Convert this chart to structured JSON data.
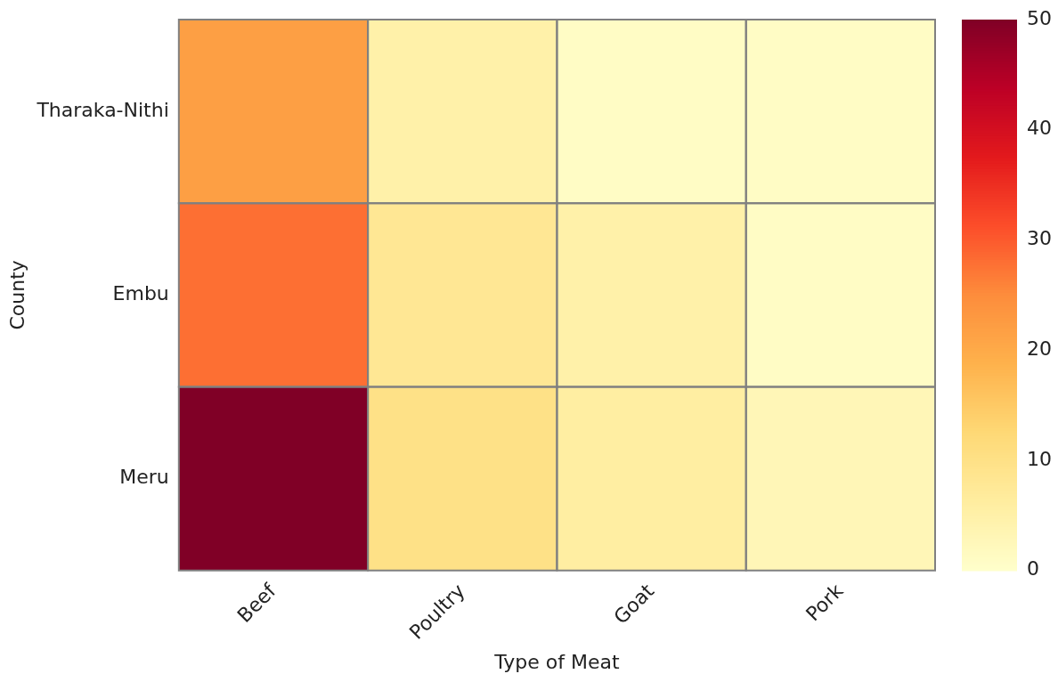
{
  "chart_data": {
    "type": "heatmap",
    "xlabel": "Type of Meat",
    "ylabel": "County",
    "categories": [
      "Beef",
      "Poultry",
      "Goat",
      "Pork"
    ],
    "y_categories": [
      "Tharaka-Nithi",
      "Embu",
      "Meru"
    ],
    "cells": [
      [
        22,
        5,
        1,
        1
      ],
      [
        28,
        8,
        5,
        1
      ],
      [
        50,
        10,
        6,
        3
      ]
    ],
    "clim": [
      0,
      50
    ],
    "cticks": [
      0,
      10,
      20,
      30,
      40,
      50
    ]
  }
}
